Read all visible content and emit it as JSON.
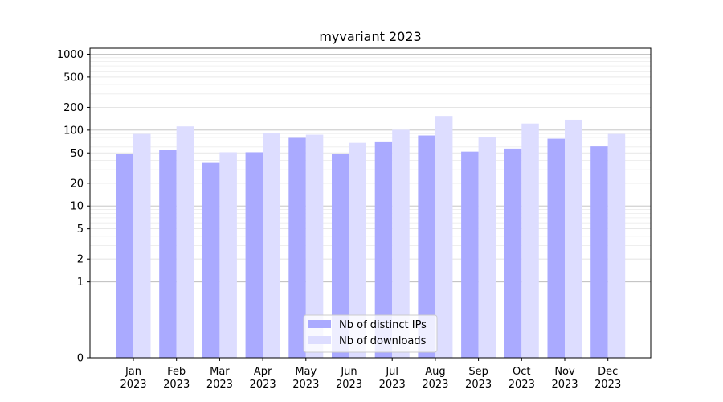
{
  "chart_data": {
    "type": "bar",
    "title": "myvariant 2023",
    "xlabel": "",
    "ylabel": "",
    "yscale": "symlog",
    "ylim": [
      0,
      1200
    ],
    "grid": "horizontal major and minor",
    "legend_position": "lower center",
    "categories": [
      [
        "Jan",
        "2023"
      ],
      [
        "Feb",
        "2023"
      ],
      [
        "Mar",
        "2023"
      ],
      [
        "Apr",
        "2023"
      ],
      [
        "May",
        "2023"
      ],
      [
        "Jun",
        "2023"
      ],
      [
        "Jul",
        "2023"
      ],
      [
        "Aug",
        "2023"
      ],
      [
        "Sep",
        "2023"
      ],
      [
        "Oct",
        "2023"
      ],
      [
        "Nov",
        "2023"
      ],
      [
        "Dec",
        "2023"
      ]
    ],
    "y_ticks": [
      0,
      1,
      2,
      5,
      10,
      20,
      50,
      100,
      200,
      500,
      1000
    ],
    "y_tick_labels": [
      "0",
      "1",
      "2",
      "5",
      "10",
      "20",
      "50",
      "100",
      "200",
      "500",
      "1000"
    ],
    "series": [
      {
        "name": "Nb of distinct IPs",
        "color": "#aaaaff",
        "values": [
          49,
          55,
          37,
          51,
          79,
          48,
          71,
          85,
          52,
          57,
          77,
          61
        ]
      },
      {
        "name": "Nb of downloads",
        "color": "#ddddff",
        "values": [
          89,
          112,
          51,
          91,
          87,
          68,
          101,
          154,
          80,
          122,
          137,
          89
        ]
      }
    ]
  }
}
